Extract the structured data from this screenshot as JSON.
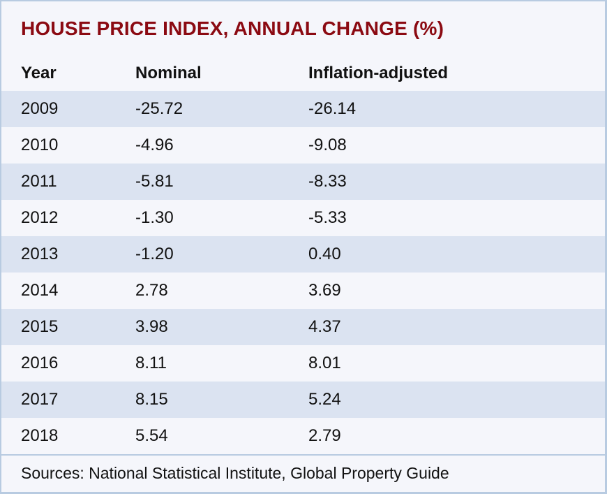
{
  "page": {
    "title": "HOUSE PRICE INDEX, ANNUAL CHANGE (%)"
  },
  "table": {
    "columns": [
      "Year",
      "Nominal",
      "Inflation-adjusted"
    ],
    "rows": [
      {
        "year": "2009",
        "nominal": "-25.72",
        "inflation_adjusted": "-26.14"
      },
      {
        "year": "2010",
        "nominal": "-4.96",
        "inflation_adjusted": "-9.08"
      },
      {
        "year": "2011",
        "nominal": "-5.81",
        "inflation_adjusted": "-8.33"
      },
      {
        "year": "2012",
        "nominal": "-1.30",
        "inflation_adjusted": "-5.33"
      },
      {
        "year": "2013",
        "nominal": "-1.20",
        "inflation_adjusted": "0.40"
      },
      {
        "year": "2014",
        "nominal": "2.78",
        "inflation_adjusted": "3.69"
      },
      {
        "year": "2015",
        "nominal": "3.98",
        "inflation_adjusted": "4.37"
      },
      {
        "year": "2016",
        "nominal": "8.11",
        "inflation_adjusted": "8.01"
      },
      {
        "year": "2017",
        "nominal": "8.15",
        "inflation_adjusted": "5.24"
      },
      {
        "year": "2018",
        "nominal": "5.54",
        "inflation_adjusted": "2.79"
      }
    ]
  },
  "footer": {
    "sources": "Sources: National Statistical Institute, Global Property Guide"
  },
  "colors": {
    "title_text": "#8b0a12",
    "row_shaded": "#dbe3f1",
    "row_light": "#f5f6fb",
    "border": "#b8cbe1",
    "body_text": "#111111"
  },
  "chart_data": {
    "type": "table",
    "title": "HOUSE PRICE INDEX, ANNUAL CHANGE (%)",
    "categories": [
      "2009",
      "2010",
      "2011",
      "2012",
      "2013",
      "2014",
      "2015",
      "2016",
      "2017",
      "2018"
    ],
    "series": [
      {
        "name": "Nominal",
        "values": [
          -25.72,
          -4.96,
          -5.81,
          -1.3,
          -1.2,
          2.78,
          3.98,
          8.11,
          8.15,
          5.54
        ]
      },
      {
        "name": "Inflation-adjusted",
        "values": [
          -26.14,
          -9.08,
          -8.33,
          -5.33,
          0.4,
          3.69,
          4.37,
          8.01,
          5.24,
          2.79
        ]
      }
    ],
    "source_note": "Sources: National Statistical Institute, Global Property Guide",
    "layout": {
      "striped_rows": true,
      "first_striped_row": "2009",
      "header_bold": true
    }
  }
}
